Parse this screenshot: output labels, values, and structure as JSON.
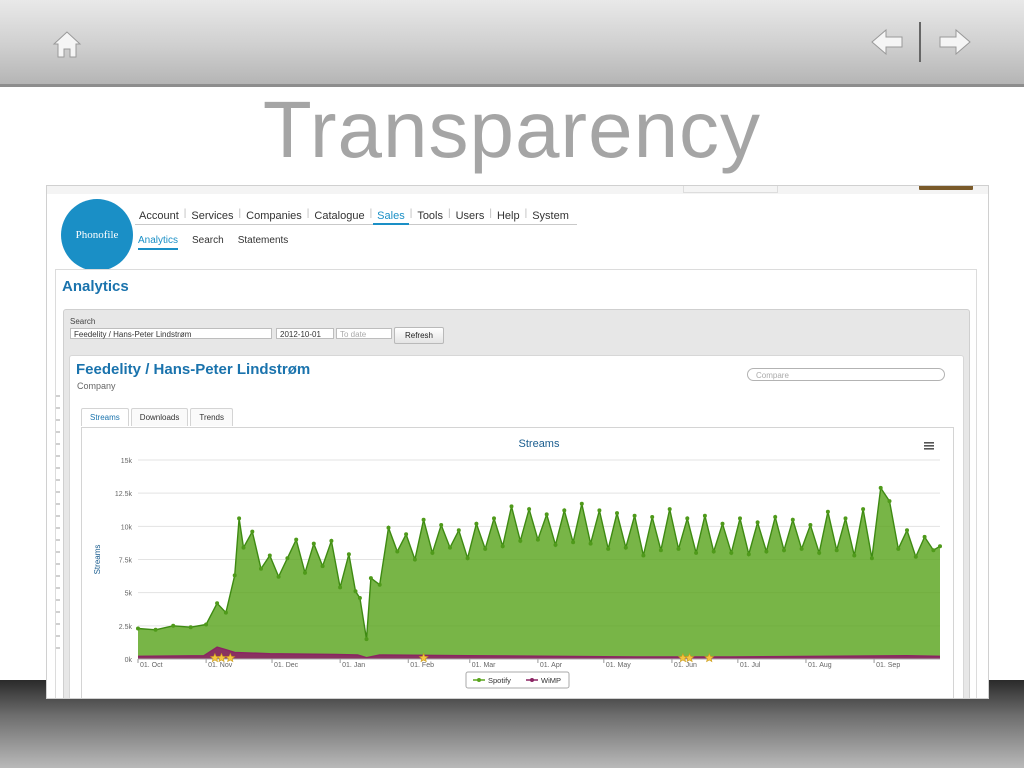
{
  "slide": {
    "title": "Transparency",
    "icons": {
      "home": "home-icon",
      "back": "arrow-left-icon",
      "forward": "arrow-right-icon"
    }
  },
  "app": {
    "logo_text": "Phonofile",
    "main_nav": [
      {
        "label": "Account",
        "active": false
      },
      {
        "label": "Services",
        "active": false
      },
      {
        "label": "Companies",
        "active": false
      },
      {
        "label": "Catalogue",
        "active": false
      },
      {
        "label": "Sales",
        "active": true
      },
      {
        "label": "Tools",
        "active": false
      },
      {
        "label": "Users",
        "active": false
      },
      {
        "label": "Help",
        "active": false
      },
      {
        "label": "System",
        "active": false
      }
    ],
    "sub_nav": [
      {
        "label": "Analytics",
        "active": true
      },
      {
        "label": "Search",
        "active": false
      },
      {
        "label": "Statements",
        "active": false
      }
    ],
    "page_title": "Analytics",
    "search": {
      "label": "Search",
      "query_value": "Feedelity / Hans-Peter Lindstrøm",
      "from_date": "2012-10-01",
      "to_date_placeholder": "To date",
      "refresh_label": "Refresh"
    },
    "company": {
      "name": "Feedelity / Hans-Peter Lindstrøm",
      "type": "Company",
      "compare_placeholder": "Compare"
    },
    "tabs": [
      {
        "label": "Streams",
        "active": true
      },
      {
        "label": "Downloads",
        "active": false
      },
      {
        "label": "Trends",
        "active": false
      }
    ],
    "colors": {
      "accent": "#1a8fc6",
      "title_blue": "#1a73ad",
      "spotify": "#5aa51e",
      "wimp": "#8b2463"
    }
  },
  "chart_data": {
    "type": "area",
    "title": "Streams",
    "ylabel": "Streams",
    "xlabel": "",
    "ylim": [
      0,
      15000
    ],
    "y_ticks": [
      "0k",
      "2.5k",
      "5k",
      "7.5k",
      "10k",
      "12.5k",
      "15k"
    ],
    "x_ticks": [
      "01. Oct",
      "01. Nov",
      "01. Dec",
      "01. Jan",
      "01. Feb",
      "01. Mar",
      "01. Apr",
      "01. May",
      "01. Jun",
      "01. Jul",
      "01. Aug",
      "01. Sep"
    ],
    "x_range_days": 365,
    "legend_position": "bottom",
    "series": [
      {
        "name": "Spotify",
        "color": "#5aa51e",
        "points": [
          [
            0,
            2300
          ],
          [
            8,
            2200
          ],
          [
            16,
            2500
          ],
          [
            24,
            2400
          ],
          [
            31,
            2600
          ],
          [
            36,
            4200
          ],
          [
            40,
            3500
          ],
          [
            44,
            6300
          ],
          [
            46,
            10600
          ],
          [
            48,
            8400
          ],
          [
            52,
            9600
          ],
          [
            56,
            6800
          ],
          [
            60,
            7800
          ],
          [
            64,
            6200
          ],
          [
            68,
            7600
          ],
          [
            72,
            9000
          ],
          [
            76,
            6500
          ],
          [
            80,
            8700
          ],
          [
            84,
            7000
          ],
          [
            88,
            8900
          ],
          [
            92,
            5400
          ],
          [
            96,
            7900
          ],
          [
            99,
            5100
          ],
          [
            101,
            4600
          ],
          [
            104,
            1500
          ],
          [
            106,
            6100
          ],
          [
            110,
            5600
          ],
          [
            114,
            9900
          ],
          [
            118,
            8100
          ],
          [
            122,
            9400
          ],
          [
            126,
            7500
          ],
          [
            130,
            10500
          ],
          [
            134,
            8000
          ],
          [
            138,
            10100
          ],
          [
            142,
            8400
          ],
          [
            146,
            9700
          ],
          [
            150,
            7600
          ],
          [
            154,
            10200
          ],
          [
            158,
            8300
          ],
          [
            162,
            10600
          ],
          [
            166,
            8500
          ],
          [
            170,
            11500
          ],
          [
            174,
            8900
          ],
          [
            178,
            11300
          ],
          [
            182,
            9000
          ],
          [
            186,
            10900
          ],
          [
            190,
            8600
          ],
          [
            194,
            11200
          ],
          [
            198,
            8800
          ],
          [
            202,
            11700
          ],
          [
            206,
            8700
          ],
          [
            210,
            11200
          ],
          [
            214,
            8300
          ],
          [
            218,
            11000
          ],
          [
            222,
            8400
          ],
          [
            226,
            10800
          ],
          [
            230,
            7800
          ],
          [
            234,
            10700
          ],
          [
            238,
            8200
          ],
          [
            242,
            11300
          ],
          [
            246,
            8300
          ],
          [
            250,
            10600
          ],
          [
            254,
            8000
          ],
          [
            258,
            10800
          ],
          [
            262,
            8100
          ],
          [
            266,
            10200
          ],
          [
            270,
            8000
          ],
          [
            274,
            10600
          ],
          [
            278,
            7900
          ],
          [
            282,
            10300
          ],
          [
            286,
            8100
          ],
          [
            290,
            10700
          ],
          [
            294,
            8200
          ],
          [
            298,
            10500
          ],
          [
            302,
            8300
          ],
          [
            306,
            10100
          ],
          [
            310,
            8000
          ],
          [
            314,
            11100
          ],
          [
            318,
            8200
          ],
          [
            322,
            10600
          ],
          [
            326,
            7800
          ],
          [
            330,
            11300
          ],
          [
            334,
            7600
          ],
          [
            338,
            12900
          ],
          [
            342,
            11900
          ],
          [
            346,
            8300
          ],
          [
            350,
            9700
          ],
          [
            354,
            7700
          ],
          [
            358,
            9200
          ],
          [
            362,
            8200
          ],
          [
            365,
            8500
          ]
        ]
      },
      {
        "name": "WiMP",
        "color": "#8b2463",
        "points": [
          [
            0,
            200
          ],
          [
            30,
            250
          ],
          [
            36,
            900
          ],
          [
            40,
            700
          ],
          [
            44,
            500
          ],
          [
            60,
            400
          ],
          [
            90,
            350
          ],
          [
            100,
            300
          ],
          [
            104,
            100
          ],
          [
            110,
            300
          ],
          [
            150,
            250
          ],
          [
            190,
            200
          ],
          [
            230,
            150
          ],
          [
            270,
            150
          ],
          [
            310,
            200
          ],
          [
            350,
            250
          ],
          [
            365,
            200
          ]
        ]
      }
    ],
    "annotations": [
      {
        "type": "star",
        "x": 35
      },
      {
        "type": "star",
        "x": 38
      },
      {
        "type": "star",
        "x": 42
      },
      {
        "type": "star",
        "x": 130
      },
      {
        "type": "star",
        "x": 248
      },
      {
        "type": "star",
        "x": 251
      },
      {
        "type": "star",
        "x": 260
      }
    ]
  }
}
